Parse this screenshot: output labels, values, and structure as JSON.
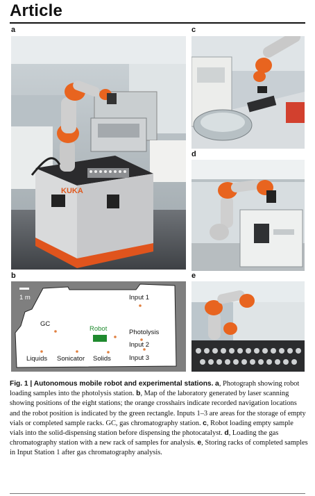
{
  "header": {
    "title": "Article"
  },
  "panels": {
    "a": {
      "letter": "a",
      "robot_logo": "KUKA"
    },
    "b": {
      "letter": "b",
      "scale_bar": "1 m",
      "labels": {
        "input1": "Input 1",
        "gc": "GC",
        "robot": "Robot",
        "photolysis": "Photolysis",
        "input2": "Input 2",
        "liquids": "Liquids",
        "sonicator": "Sonicator",
        "solids": "Solids",
        "input3": "Input 3"
      },
      "colors": {
        "robot_box": "#1f8a2e",
        "robot_text": "#1f8a2e",
        "crosshair": "#e08040",
        "map_bg": "#ffffff",
        "outer": "#7f7f7f"
      }
    },
    "c": {
      "letter": "c"
    },
    "d": {
      "letter": "d"
    },
    "e": {
      "letter": "e"
    }
  },
  "caption": {
    "fig_label": "Fig. 1 |",
    "title": " Autonomous mobile robot and experimental stations.",
    "a_letter": "a",
    "a_text": ", Photograph showing robot loading samples into the photolysis station. ",
    "b_letter": "b",
    "b_text": ", Map of the laboratory generated by laser scanning showing positions of the eight stations; the orange crosshairs indicate recorded navigation locations and the robot position is indicated by the green rectangle. Inputs 1–3 are areas for the storage of empty vials or completed sample racks. GC, gas chromatography station. ",
    "c_letter": "c",
    "c_text": ", Robot loading empty sample vials into the solid-dispensing station before dispensing the photocatalyst. ",
    "d_letter": "d",
    "d_text": ", Loading the gas chromatography station with a new rack of samples for analysis. ",
    "e_letter": "e",
    "e_text": ", Storing racks of completed samples in Input Station 1 after gas chromatography analysis."
  }
}
